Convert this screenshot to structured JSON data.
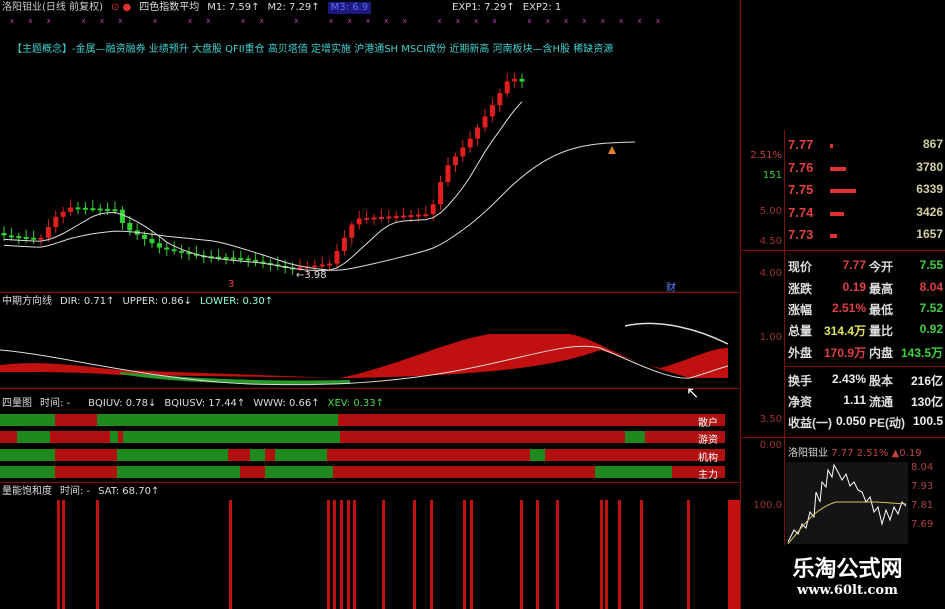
{
  "header": {
    "stock_title": "洛阳钼业(日线 前复权)",
    "indicator_name": "四色指数平均",
    "m1": "M1: 7.59↑",
    "m2": "M2: 7.29↑",
    "m3": "M3: 6.9",
    "exp1": "EXP1: 7.29↑",
    "exp2": "EXP2: 1"
  },
  "concepts": "【主题概念】-金属—融资融券 业绩预升 大盘股 QFII重仓 高贝塔值 定增实施 沪港通SH MSCI成份 近期新高 河南板块—含H股 稀缺资源",
  "main_chart": {
    "low_marker": "←3.98",
    "marker_3": "3",
    "marker_cai": "财"
  },
  "axis_labels": [
    "5.00",
    "4.50",
    "4.00",
    "1.00",
    "3.50",
    "0.00",
    "100.0"
  ],
  "dir_panel": {
    "title": "中期方向线",
    "dir": "DIR: 0.71↑",
    "upper": "UPPER: 0.86↓",
    "lower": "LOWER: 0.30↑"
  },
  "four_panel": {
    "title": "四量图",
    "time": "时间: -",
    "bqiuv": "BQIUV: 0.78↓",
    "bqiusv": "BQIUSV: 17.44↑",
    "www": "WWW: 0.66↑",
    "xev": "XEV: 0.33↑",
    "rows": [
      {
        "label": "散户",
        "segments": [
          [
            "g",
            0,
            55
          ],
          [
            "r",
            55,
            97
          ],
          [
            "g",
            97,
            338
          ],
          [
            "r",
            338,
            725
          ]
        ]
      },
      {
        "label": "游资",
        "segments": [
          [
            "r",
            0,
            17
          ],
          [
            "g",
            17,
            50
          ],
          [
            "r",
            50,
            110
          ],
          [
            "g",
            110,
            118
          ],
          [
            "r",
            118,
            123
          ],
          [
            "g",
            123,
            340
          ],
          [
            "r",
            340,
            625
          ],
          [
            "g",
            625,
            645
          ],
          [
            "r",
            645,
            725
          ]
        ]
      },
      {
        "label": "机构",
        "segments": [
          [
            "g",
            0,
            55
          ],
          [
            "r",
            55,
            117
          ],
          [
            "g",
            117,
            228
          ],
          [
            "r",
            228,
            250
          ],
          [
            "g",
            250,
            265
          ],
          [
            "r",
            265,
            275
          ],
          [
            "g",
            275,
            327
          ],
          [
            "r",
            327,
            530
          ],
          [
            "g",
            530,
            545
          ],
          [
            "r",
            545,
            725
          ]
        ]
      },
      {
        "label": "主力",
        "segments": [
          [
            "g",
            0,
            55
          ],
          [
            "r",
            55,
            117
          ],
          [
            "g",
            117,
            240
          ],
          [
            "r",
            240,
            265
          ],
          [
            "g",
            265,
            333
          ],
          [
            "r",
            333,
            595
          ],
          [
            "g",
            595,
            672
          ],
          [
            "r",
            672,
            725
          ]
        ]
      }
    ],
    "colors": {
      "g": "#1e8a1e",
      "r": "#b01010"
    }
  },
  "sat_panel": {
    "title": "量能饱和度",
    "time": "时间: -",
    "sat": "SAT: 68.70↑"
  },
  "order_book": {
    "change_pct": "2.51%",
    "count": "151",
    "rows": [
      {
        "price": "7.77",
        "volume": "867",
        "level": 0.1
      },
      {
        "price": "7.76",
        "volume": "3780",
        "level": 0.6
      },
      {
        "price": "7.75",
        "volume": "6339",
        "level": 1.0
      },
      {
        "price": "7.74",
        "volume": "3426",
        "level": 0.55
      },
      {
        "price": "7.73",
        "volume": "1657",
        "level": 0.25
      }
    ]
  },
  "quote": {
    "rows": [
      [
        "现价",
        "7.77",
        "red",
        "今开",
        "7.55",
        "grn"
      ],
      [
        "涨跌",
        "0.19",
        "red",
        "最高",
        "8.04",
        "red"
      ],
      [
        "涨幅",
        "2.51%",
        "red",
        "最低",
        "7.52",
        "grn"
      ],
      [
        "总量",
        "314.4万",
        "yel",
        "量比",
        "0.92",
        "grn"
      ],
      [
        "外盘",
        "170.9万",
        "red",
        "内盘",
        "143.5万",
        "grn"
      ],
      [
        "换手",
        "2.43%",
        "wht",
        "股本",
        "216亿",
        "wht"
      ],
      [
        "净资",
        "1.11",
        "wht",
        "流通",
        "130亿",
        "wht"
      ],
      [
        "收益(一)",
        "0.050",
        "wht",
        "PE(动)",
        "100.5",
        "wht"
      ]
    ]
  },
  "mini_chart": {
    "name": "洛阳钼业",
    "price": "7.77",
    "pct": "2.51%",
    "change": "▲0.19",
    "ticks": [
      "8.04",
      "7.93",
      "7.81",
      "7.69"
    ]
  },
  "watermark": {
    "name": "乐淘公式网",
    "url": "www.60lt.com"
  }
}
